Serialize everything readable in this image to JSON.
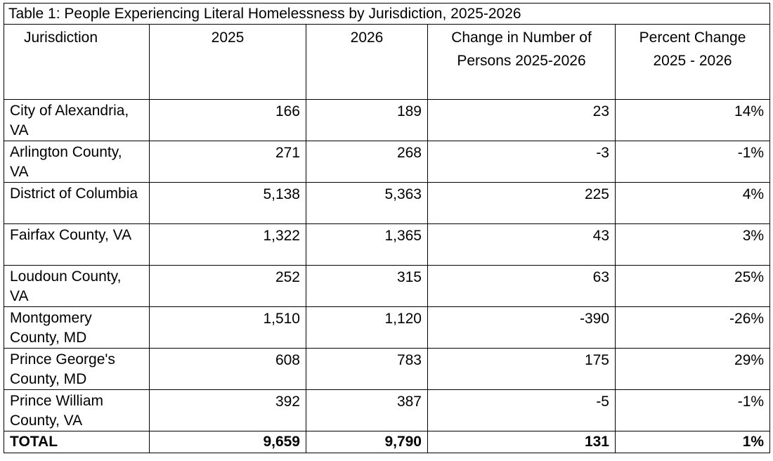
{
  "table": {
    "caption": "Table 1: People Experiencing Literal Homelessness by Jurisdiction, 2025-2026",
    "headers": [
      "Jurisdiction",
      "2025",
      "2026",
      "Change in Number of Persons 2025-2026",
      "Percent Change 2025 - 2026"
    ],
    "rows": [
      {
        "jurisdiction": "City of Alexandria, VA",
        "y2025": "166",
        "y2026": "189",
        "change": "23",
        "percent": "14%"
      },
      {
        "jurisdiction": "Arlington County, VA",
        "y2025": "271",
        "y2026": "268",
        "change": "-3",
        "percent": "-1%"
      },
      {
        "jurisdiction": "District of Columbia",
        "y2025": "5,138",
        "y2026": "5,363",
        "change": "225",
        "percent": "4%"
      },
      {
        "jurisdiction": "Fairfax County, VA",
        "y2025": "1,322",
        "y2026": "1,365",
        "change": "43",
        "percent": "3%"
      },
      {
        "jurisdiction": "Loudoun County, VA",
        "y2025": "252",
        "y2026": "315",
        "change": "63",
        "percent": "25%"
      },
      {
        "jurisdiction": "Montgomery County, MD",
        "y2025": "1,510",
        "y2026": "1,120",
        "change": "-390",
        "percent": "-26%"
      },
      {
        "jurisdiction": "Prince George's County, MD",
        "y2025": "608",
        "y2026": "783",
        "change": "175",
        "percent": "29%"
      },
      {
        "jurisdiction": "Prince William County, VA",
        "y2025": "392",
        "y2026": "387",
        "change": "-5",
        "percent": "-1%"
      }
    ],
    "total": {
      "label": "TOTAL",
      "y2025": "9,659",
      "y2026": "9,790",
      "change": "131",
      "percent": "1%"
    }
  }
}
